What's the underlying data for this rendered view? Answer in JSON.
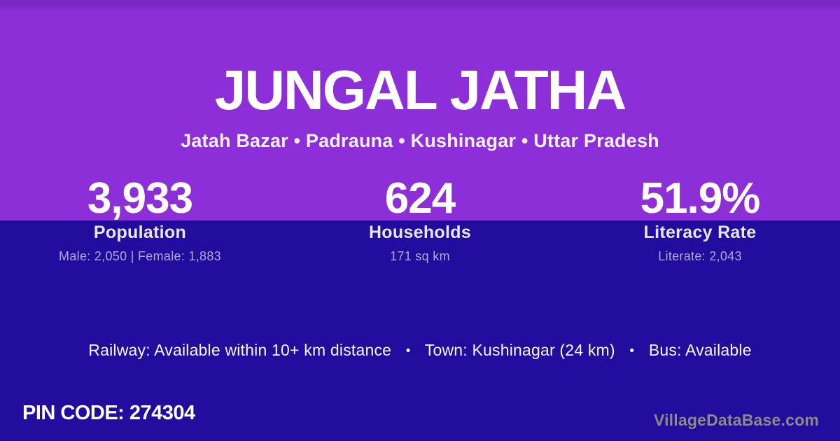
{
  "village": {
    "title": "JUNGAL JATHA",
    "subtitle": "Jatah Bazar • Padrauna • Kushinagar • Uttar Pradesh"
  },
  "stats": [
    {
      "value": "3,933",
      "label": "Population",
      "detail": "Male: 2,050 | Female: 1,883"
    },
    {
      "value": "624",
      "label": "Households",
      "detail": "171 sq km"
    },
    {
      "value": "51.9%",
      "label": "Literacy Rate",
      "detail": "Literate: 2,043"
    }
  ],
  "amenities": {
    "railway": "Railway: Available within 10+ km distance",
    "town": "Town: Kushinagar (24 km)",
    "bus": "Bus: Available",
    "separator": "•"
  },
  "footer": {
    "pin_code": "PIN CODE: 274304",
    "watermark": "VillageDataBase.com"
  },
  "colors": {
    "top_bg": "#8C2FD9",
    "top_bg_shade": "#7B27C4",
    "bottom_bg": "#210C9D",
    "text_primary": "#FFFFFF",
    "subtitle_text": "#F5F0FB",
    "label_text": "#EBE4F9",
    "detail_text": "#B3A5DF",
    "amenity_text": "#F8F6FD",
    "watermark_text": "#8B8A85"
  }
}
